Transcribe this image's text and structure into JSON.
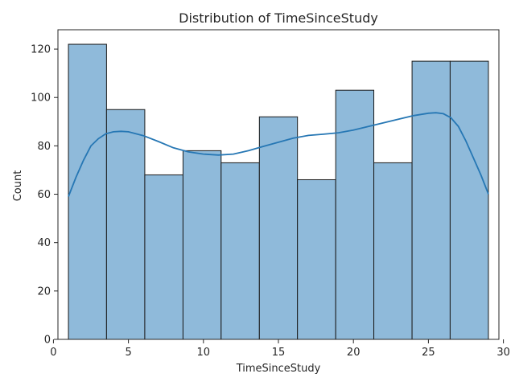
{
  "chart_data": {
    "type": "bar",
    "title": "Distribution of TimeSinceStudy",
    "xlabel": "TimeSinceStudy",
    "ylabel": "Count",
    "xlim": [
      0.3,
      29.7
    ],
    "ylim": [
      0,
      128
    ],
    "xticks": [
      0,
      5,
      10,
      15,
      20,
      25,
      30
    ],
    "yticks": [
      0,
      20,
      40,
      60,
      80,
      100,
      120
    ],
    "bins": [
      {
        "x0": 1.0,
        "x1": 3.54,
        "count": 122
      },
      {
        "x0": 3.54,
        "x1": 6.09,
        "count": 95
      },
      {
        "x0": 6.09,
        "x1": 8.64,
        "count": 68
      },
      {
        "x0": 8.64,
        "x1": 11.18,
        "count": 78
      },
      {
        "x0": 11.18,
        "x1": 13.73,
        "count": 73
      },
      {
        "x0": 13.73,
        "x1": 16.27,
        "count": 92
      },
      {
        "x0": 16.27,
        "x1": 18.82,
        "count": 66
      },
      {
        "x0": 18.82,
        "x1": 21.36,
        "count": 103
      },
      {
        "x0": 21.36,
        "x1": 23.91,
        "count": 73
      },
      {
        "x0": 23.91,
        "x1": 26.45,
        "count": 115
      },
      {
        "x0": 26.45,
        "x1": 29.0,
        "count": 115
      }
    ],
    "kde": {
      "x": [
        1.0,
        1.5,
        2.0,
        2.5,
        3.0,
        3.5,
        4.0,
        4.5,
        5.0,
        6.0,
        7.0,
        8.0,
        9.0,
        10.0,
        11.0,
        12.0,
        13.0,
        14.0,
        15.0,
        16.0,
        17.0,
        18.0,
        19.0,
        20.0,
        21.0,
        22.0,
        23.0,
        24.0,
        25.0,
        25.5,
        26.0,
        26.5,
        27.0,
        27.5,
        28.0,
        28.5,
        29.0
      ],
      "y": [
        59,
        67,
        74,
        80,
        83,
        85,
        85.8,
        86,
        85.8,
        84.2,
        81.8,
        79.2,
        77.5,
        76.6,
        76.2,
        76.6,
        78,
        79.8,
        81.5,
        83.2,
        84.3,
        84.8,
        85.4,
        86.5,
        88,
        89.5,
        91,
        92.5,
        93.5,
        93.7,
        93.3,
        91.6,
        88,
        82,
        75,
        68,
        60
      ]
    },
    "grid": false,
    "legend": "none",
    "colors": {
      "bar_fill": "#8fbada",
      "bar_edge": "#1a1a1a",
      "kde_line": "#2677b4",
      "axis": "#262626"
    }
  }
}
